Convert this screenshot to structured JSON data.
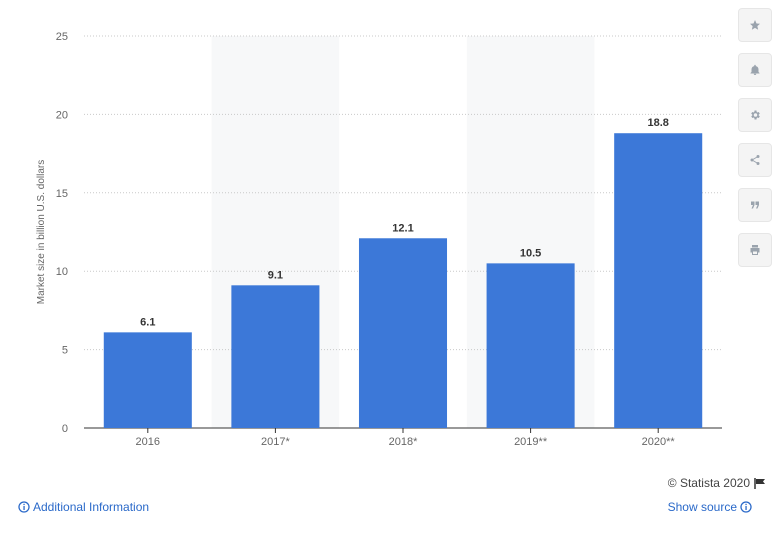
{
  "chart_data": {
    "type": "bar",
    "categories": [
      "2016",
      "2017*",
      "2018*",
      "2019**",
      "2020**"
    ],
    "values": [
      6.1,
      9.1,
      12.1,
      10.5,
      18.8
    ],
    "value_labels": [
      "6.1",
      "9.1",
      "12.1",
      "10.5",
      "18.8"
    ],
    "ylabel": "Market size in billion U.S. dollars",
    "ylim": [
      0,
      25
    ],
    "yticks": [
      0,
      5,
      10,
      15,
      20,
      25
    ],
    "grid": true,
    "bar_color": "#3c78d8"
  },
  "toolbar": {
    "icons": [
      "star-icon",
      "bell-icon",
      "gear-icon",
      "share-icon",
      "quote-icon",
      "print-icon"
    ]
  },
  "footer": {
    "credit": "© Statista 2020",
    "additional_info": "Additional Information",
    "show_source": "Show source"
  },
  "colors": {
    "accent": "#2a69c9",
    "bar": "#3c78d8"
  }
}
